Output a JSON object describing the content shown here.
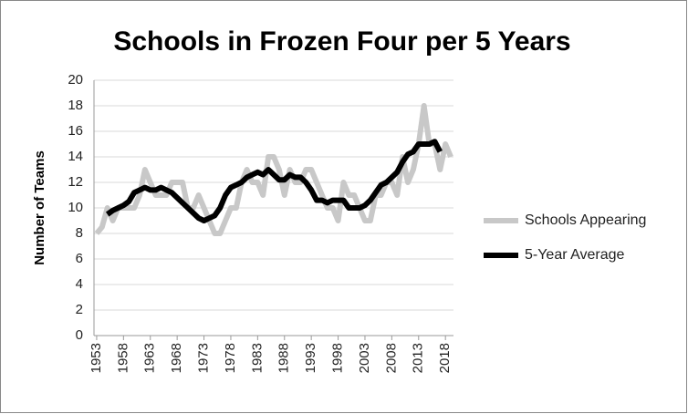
{
  "chart_data": {
    "type": "line",
    "title": "Schools in Frozen Four per 5 Years",
    "y_label": "Number of Teams",
    "categories": [
      "1953",
      null,
      null,
      null,
      null,
      "1958",
      null,
      null,
      null,
      null,
      "1963",
      null,
      null,
      null,
      null,
      "1968",
      null,
      null,
      null,
      null,
      "1973",
      null,
      null,
      null,
      null,
      "1978",
      null,
      null,
      null,
      null,
      "1983",
      null,
      null,
      null,
      null,
      "1988",
      null,
      null,
      null,
      null,
      "1993",
      null,
      null,
      null,
      null,
      "1998",
      null,
      null,
      null,
      null,
      "2003",
      null,
      null,
      null,
      null,
      "2008",
      null,
      null,
      null,
      null,
      "2013",
      null,
      null,
      null,
      null,
      "2018",
      null
    ],
    "series": [
      {
        "name": "Schools Appearing",
        "color": "#c8c8c8",
        "width": 6,
        "values": [
          8,
          8.5,
          10,
          9,
          10,
          10,
          10,
          10,
          11,
          13,
          12,
          11,
          11,
          11,
          12,
          12,
          12,
          10,
          10,
          11,
          10,
          9,
          8,
          8,
          9,
          10,
          10,
          12,
          13,
          12,
          12,
          11,
          14,
          14,
          13,
          11,
          13,
          12,
          12,
          13,
          13,
          12,
          11,
          10,
          10,
          9,
          12,
          11,
          11,
          10,
          9,
          9,
          11,
          11,
          12,
          12,
          11,
          14,
          12,
          13,
          15,
          18,
          15,
          15,
          13,
          15,
          14
        ]
      },
      {
        "name": "5-Year Average",
        "color": "#000000",
        "width": 6,
        "values": [
          null,
          null,
          9.5,
          9.8,
          10,
          10.2,
          10.5,
          11.2,
          11.4,
          11.6,
          11.4,
          11.4,
          11.6,
          11.4,
          11.2,
          10.8,
          10.4,
          10,
          9.6,
          9.2,
          9,
          9.2,
          9.4,
          10,
          11,
          11.6,
          11.8,
          12,
          12.4,
          12.6,
          12.8,
          12.6,
          13,
          12.6,
          12.2,
          12.2,
          12.6,
          12.4,
          12.4,
          12,
          11.4,
          10.6,
          10.6,
          10.4,
          10.6,
          10.6,
          10.6,
          10,
          10,
          10,
          10.2,
          10.6,
          11.2,
          11.8,
          12,
          12.4,
          12.8,
          13.6,
          14.2,
          14.4,
          15,
          15,
          15,
          15.2,
          14.4,
          null,
          null
        ]
      }
    ],
    "ylim": [
      0,
      20
    ],
    "yticks": [
      0,
      2,
      4,
      6,
      8,
      10,
      12,
      14,
      16,
      18,
      20
    ],
    "grid": true,
    "legend": "right"
  }
}
